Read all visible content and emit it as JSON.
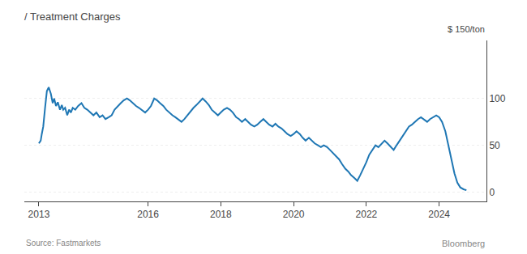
{
  "chart_data": {
    "type": "line",
    "title": "/ Treatment Charges",
    "ylabel": "$ 150/ton",
    "annotations": [
      "Source: Fastmarkets",
      "Bloomberg"
    ],
    "x": [
      2013.0,
      2013.05,
      2013.08,
      2013.12,
      2013.17,
      2013.22,
      2013.27,
      2013.33,
      2013.38,
      2013.42,
      2013.47,
      2013.52,
      2013.58,
      2013.63,
      2013.67,
      2013.72,
      2013.78,
      2013.83,
      2013.88,
      2013.93,
      2014.0,
      2014.08,
      2014.17,
      2014.25,
      2014.33,
      2014.42,
      2014.5,
      2014.58,
      2014.67,
      2014.75,
      2014.83,
      2014.92,
      2015.0,
      2015.08,
      2015.17,
      2015.25,
      2015.33,
      2015.42,
      2015.5,
      2015.58,
      2015.67,
      2015.75,
      2015.83,
      2015.92,
      2016.0,
      2016.08,
      2016.17,
      2016.25,
      2016.33,
      2016.42,
      2016.5,
      2016.58,
      2016.67,
      2016.75,
      2016.83,
      2016.92,
      2017.0,
      2017.08,
      2017.17,
      2017.25,
      2017.33,
      2017.42,
      2017.5,
      2017.58,
      2017.67,
      2017.75,
      2017.83,
      2017.92,
      2018.0,
      2018.08,
      2018.17,
      2018.25,
      2018.33,
      2018.42,
      2018.5,
      2018.58,
      2018.67,
      2018.75,
      2018.83,
      2018.92,
      2019.0,
      2019.08,
      2019.17,
      2019.25,
      2019.33,
      2019.42,
      2019.5,
      2019.58,
      2019.67,
      2019.75,
      2019.83,
      2019.92,
      2020.0,
      2020.08,
      2020.17,
      2020.25,
      2020.33,
      2020.42,
      2020.5,
      2020.58,
      2020.67,
      2020.75,
      2020.83,
      2020.92,
      2021.0,
      2021.08,
      2021.17,
      2021.25,
      2021.33,
      2021.42,
      2021.5,
      2021.58,
      2021.67,
      2021.75,
      2021.83,
      2021.92,
      2022.0,
      2022.08,
      2022.17,
      2022.25,
      2022.33,
      2022.42,
      2022.5,
      2022.58,
      2022.67,
      2022.75,
      2022.83,
      2022.92,
      2023.0,
      2023.08,
      2023.17,
      2023.25,
      2023.33,
      2023.42,
      2023.5,
      2023.58,
      2023.67,
      2023.75,
      2023.83,
      2023.92,
      2024.0,
      2024.08,
      2024.17,
      2024.25,
      2024.33,
      2024.42,
      2024.5,
      2024.58,
      2024.67,
      2024.75
    ],
    "values": [
      52,
      55,
      62,
      70,
      90,
      108,
      112,
      105,
      95,
      100,
      92,
      96,
      88,
      93,
      88,
      90,
      82,
      88,
      85,
      90,
      88,
      92,
      95,
      90,
      88,
      85,
      82,
      85,
      80,
      82,
      78,
      80,
      82,
      88,
      92,
      95,
      98,
      100,
      98,
      95,
      92,
      90,
      88,
      85,
      88,
      92,
      100,
      98,
      95,
      92,
      88,
      85,
      82,
      80,
      78,
      75,
      78,
      82,
      87,
      90,
      93,
      97,
      100,
      97,
      93,
      88,
      85,
      82,
      85,
      88,
      90,
      88,
      85,
      80,
      78,
      75,
      78,
      75,
      72,
      70,
      72,
      75,
      78,
      75,
      72,
      70,
      73,
      70,
      68,
      65,
      62,
      60,
      62,
      65,
      62,
      58,
      55,
      58,
      55,
      52,
      50,
      48,
      50,
      48,
      45,
      42,
      38,
      35,
      30,
      25,
      22,
      18,
      15,
      12,
      18,
      25,
      32,
      40,
      45,
      50,
      48,
      52,
      55,
      52,
      48,
      45,
      50,
      55,
      60,
      65,
      70,
      72,
      75,
      78,
      80,
      78,
      75,
      78,
      80,
      82,
      80,
      75,
      65,
      50,
      35,
      20,
      10,
      5,
      3,
      2
    ],
    "xlim": [
      2012.6,
      2025.3
    ],
    "xticks": [
      2013,
      2016,
      2018,
      2020,
      2022,
      2024
    ],
    "ylim": [
      -10,
      162
    ],
    "yticks": [
      0,
      50,
      100
    ],
    "grid": "y"
  }
}
